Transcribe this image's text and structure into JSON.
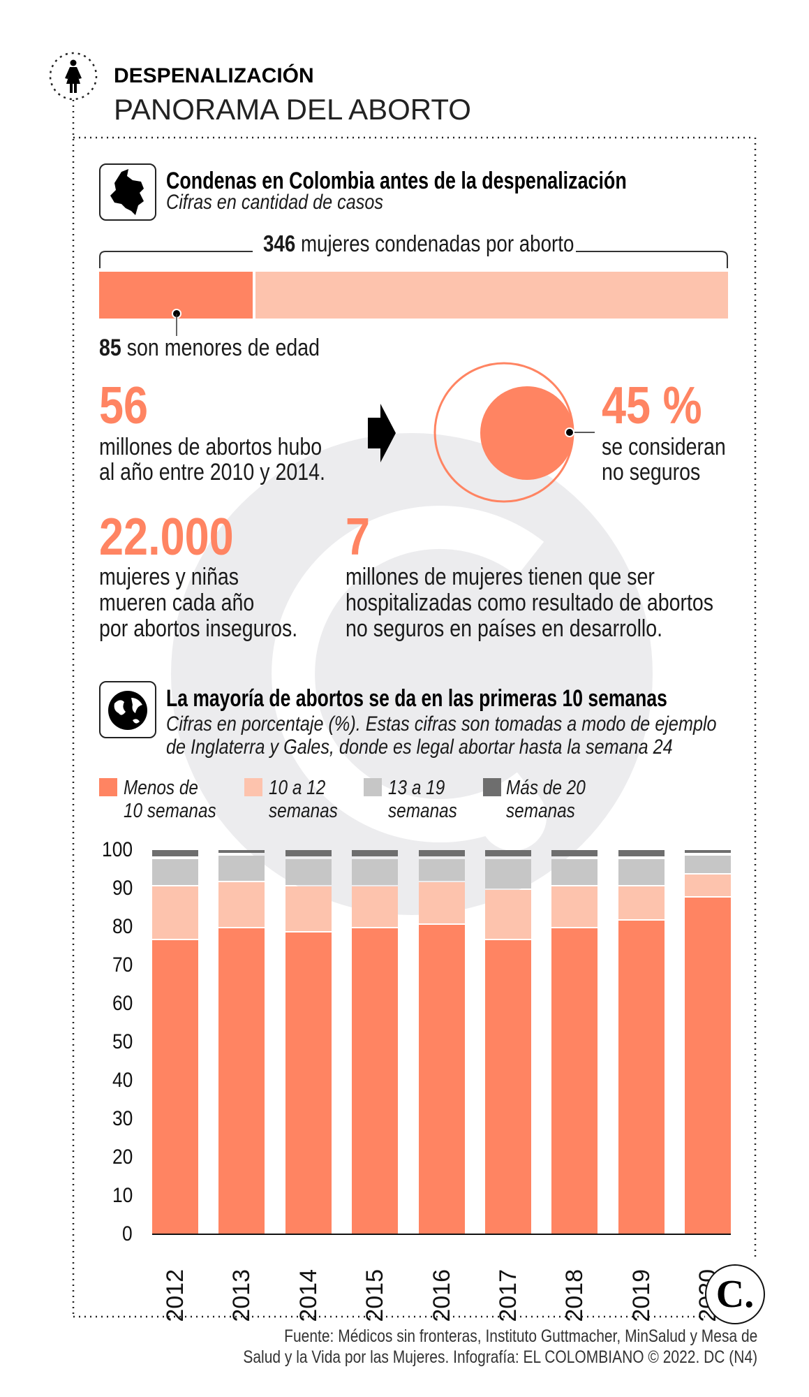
{
  "header": {
    "kicker": "DESPENALIZACIÓN",
    "title": "PANORAMA DEL ABORTO",
    "icon": "woman-icon"
  },
  "section1": {
    "icon": "colombia-map-icon",
    "title": "Condenas en Colombia antes de la despenalización",
    "subtitle": "Cifras en cantidad de casos",
    "total_number": "346",
    "total_text": " mujeres condenadas por aborto",
    "total_value": 346,
    "minors_number": "85",
    "minors_text": " son menores de edad",
    "minors_value": 85,
    "stat1": {
      "number": "56",
      "lines": [
        "millones de abortos hubo",
        "al año entre 2010 y 2014."
      ]
    },
    "stat2": {
      "number": "45 %",
      "value_percent": 45,
      "lines": [
        "se consideran",
        "no seguros"
      ]
    },
    "stat3": {
      "number": "22.000",
      "lines": [
        "mujeres y niñas",
        "mueren cada año",
        "por abortos inseguros."
      ]
    },
    "stat4": {
      "number": "7",
      "lines": [
        "millones de mujeres tienen que ser",
        "hospitalizadas como resultado de abortos",
        "no seguros en países en desarrollo."
      ]
    }
  },
  "section2": {
    "icon": "globe-icon",
    "title": "La mayoría de abortos se da en las primeras 10 semanas",
    "subtitle_lines": [
      "Cifras en porcentaje (%). Estas cifras son tomadas a modo de ejemplo",
      "de Inglaterra y Gales, donde es legal abortar hasta la semana 24"
    ]
  },
  "colors": {
    "accent": "#ff8462",
    "light_accent": "#fdc3ad",
    "gray": "#c6c6c6",
    "dark_gray": "#6e6e6e",
    "watermark": "#ececee"
  },
  "chart_data": {
    "type": "bar",
    "stacked": true,
    "categories": [
      "2012",
      "2013",
      "2014",
      "2015",
      "2016",
      "2017",
      "2018",
      "2019",
      "2020"
    ],
    "series": [
      {
        "name": "Menos de 10 semanas",
        "label_lines": [
          "Menos de",
          "10 semanas"
        ],
        "color": "#ff8462",
        "values": [
          77,
          80,
          79,
          80,
          81,
          77,
          80,
          82,
          88
        ]
      },
      {
        "name": "10 a 12 semanas",
        "label_lines": [
          "10 a 12",
          "semanas"
        ],
        "color": "#fdc3ad",
        "values": [
          14,
          12,
          12,
          11,
          11,
          13,
          11,
          9,
          6
        ]
      },
      {
        "name": "13 a 19 semanas",
        "label_lines": [
          "13 a 19",
          "semanas"
        ],
        "color": "#c6c6c6",
        "values": [
          7,
          7,
          7,
          7,
          6,
          8,
          7,
          7,
          5
        ]
      },
      {
        "name": "Más de 20 semanas",
        "label_lines": [
          "Más de 20",
          "semanas"
        ],
        "color": "#6e6e6e",
        "values": [
          2,
          1,
          2,
          2,
          2,
          2,
          2,
          2,
          1
        ]
      }
    ],
    "ylim": [
      0,
      100
    ],
    "yticks": [
      0,
      10,
      20,
      30,
      40,
      50,
      60,
      70,
      80,
      90,
      100
    ],
    "legend": "top",
    "grid": false
  },
  "footer": {
    "lines": [
      "Fuente: Médicos sin fronteras, Instituto Guttmacher, MinSalud y Mesa de",
      "Salud y la Vida por las Mujeres. Infografía: EL COLOMBIANO © 2022. DC (N4)"
    ],
    "logo": "C."
  }
}
